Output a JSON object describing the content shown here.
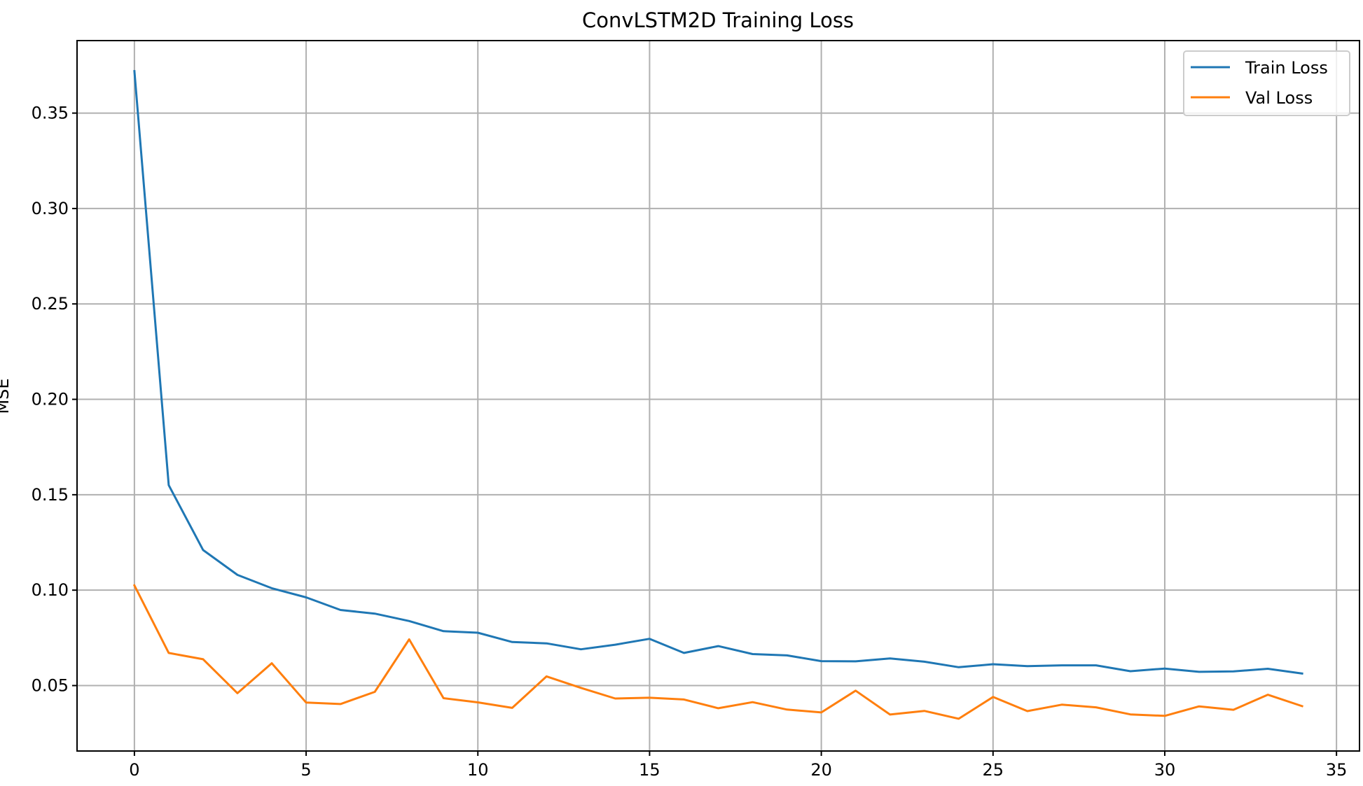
{
  "chart_data": {
    "type": "line",
    "title": "ConvLSTM2D Training Loss",
    "xlabel": "",
    "ylabel": "MSE",
    "xlim": [
      -1.67,
      35.67
    ],
    "ylim": [
      0.0157,
      0.388
    ],
    "xticks": [
      0,
      5,
      10,
      15,
      20,
      25,
      30,
      35
    ],
    "yticks": [
      0.05,
      0.1,
      0.15,
      0.2,
      0.25,
      0.3,
      0.35
    ],
    "ytick_labels": [
      "0.05",
      "0.10",
      "0.15",
      "0.20",
      "0.25",
      "0.30",
      "0.35"
    ],
    "grid": true,
    "legend_position": "top-right",
    "x": [
      0,
      1,
      2,
      3,
      4,
      5,
      6,
      7,
      8,
      9,
      10,
      11,
      12,
      13,
      14,
      15,
      16,
      17,
      18,
      19,
      20,
      21,
      22,
      23,
      24,
      25,
      26,
      27,
      28,
      29,
      30,
      31,
      32,
      33,
      34
    ],
    "series": [
      {
        "name": "Train Loss",
        "color": "#1f77b4",
        "values": [
          0.372,
          0.155,
          0.121,
          0.108,
          0.101,
          0.0962,
          0.0896,
          0.0877,
          0.0838,
          0.0785,
          0.0777,
          0.0728,
          0.0721,
          0.069,
          0.0714,
          0.0745,
          0.0671,
          0.0707,
          0.0665,
          0.0658,
          0.0628,
          0.0627,
          0.0642,
          0.0625,
          0.0596,
          0.0612,
          0.0602,
          0.0606,
          0.0606,
          0.0575,
          0.0589,
          0.0572,
          0.0574,
          0.0588,
          0.0563
        ]
      },
      {
        "name": "Val Loss",
        "color": "#ff7f0e",
        "values": [
          0.1025,
          0.0671,
          0.0638,
          0.046,
          0.0617,
          0.0411,
          0.0403,
          0.0467,
          0.0742,
          0.0434,
          0.0412,
          0.0383,
          0.0548,
          0.0488,
          0.0432,
          0.0436,
          0.0427,
          0.0381,
          0.0413,
          0.0374,
          0.0359,
          0.0473,
          0.0348,
          0.0367,
          0.0326,
          0.044,
          0.0366,
          0.04,
          0.0386,
          0.0349,
          0.0341,
          0.0391,
          0.0373,
          0.0452,
          0.0392
        ]
      }
    ]
  }
}
